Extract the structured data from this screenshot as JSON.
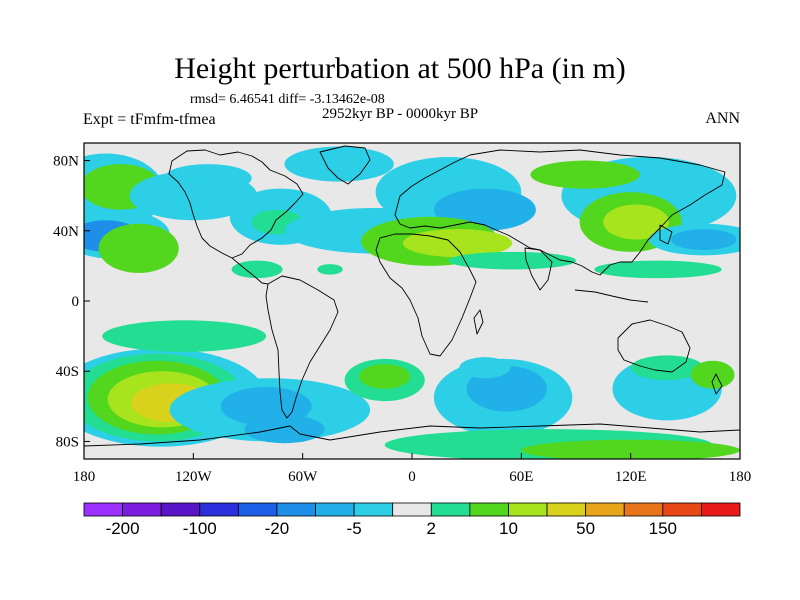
{
  "header": {
    "title": "Height perturbation at 500 hPa (in m)",
    "stats": "rmsd= 6.46541 diff= -3.13462e-08",
    "experiment": "Expt = tFmfm-tfmea",
    "period": "2952kyr BP - 0000kyr BP",
    "season": "ANN"
  },
  "axes": {
    "lat_labels": [
      {
        "label": "80N",
        "value": 80
      },
      {
        "label": "40N",
        "value": 40
      },
      {
        "label": "0",
        "value": 0
      },
      {
        "label": "40S",
        "value": -40
      },
      {
        "label": "80S",
        "value": -80
      }
    ],
    "lon_labels": [
      {
        "label": "180",
        "value": -180
      },
      {
        "label": "120W",
        "value": -120
      },
      {
        "label": "60W",
        "value": -60
      },
      {
        "label": "0",
        "value": 0
      },
      {
        "label": "60E",
        "value": 60
      },
      {
        "label": "120E",
        "value": 120
      },
      {
        "label": "180",
        "value": 180
      }
    ],
    "lat_range": [
      -90,
      90
    ],
    "lon_range": [
      -180,
      180
    ]
  },
  "colorbar": {
    "colors": [
      "#9b30ff",
      "#7b1ee0",
      "#5a14c8",
      "#2b30dc",
      "#1d5ee6",
      "#1e8ee8",
      "#22b0e8",
      "#2ccfe6",
      "#e8e8e8",
      "#23dd93",
      "#52d61e",
      "#a8e41e",
      "#d8d21c",
      "#e8a51a",
      "#e87519",
      "#e84717",
      "#e81919"
    ],
    "labels": [
      {
        "text": "-200",
        "boundary": 1
      },
      {
        "text": "-100",
        "boundary": 3
      },
      {
        "text": "-20",
        "boundary": 5
      },
      {
        "text": "-5",
        "boundary": 7
      },
      {
        "text": "2",
        "boundary": 9
      },
      {
        "text": "10",
        "boundary": 11
      },
      {
        "text": "50",
        "boundary": 13
      },
      {
        "text": "150",
        "boundary": 15
      }
    ]
  },
  "chart_data": {
    "type": "heatmap",
    "title": "Height perturbation at 500 hPa (in m)",
    "background_class": 8,
    "regions": [
      {
        "lon": -168,
        "lat": 62,
        "rlon": 32,
        "rlat": 22,
        "cls": 7
      },
      {
        "lon": -160,
        "lat": 65,
        "rlon": 22,
        "rlat": 13,
        "cls": 10
      },
      {
        "lon": -163,
        "lat": 38,
        "rlon": 30,
        "rlat": 14,
        "cls": 7
      },
      {
        "lon": -168,
        "lat": 37,
        "rlon": 19,
        "rlat": 9,
        "cls": 5
      },
      {
        "lon": -150,
        "lat": 30,
        "rlon": 22,
        "rlat": 14,
        "cls": 10
      },
      {
        "lon": -120,
        "lat": 60,
        "rlon": 35,
        "rlat": 14,
        "cls": 7
      },
      {
        "lon": -112,
        "lat": 70,
        "rlon": 24,
        "rlat": 8,
        "cls": 7
      },
      {
        "lon": -72,
        "lat": 48,
        "rlon": 28,
        "rlat": 16,
        "cls": 7
      },
      {
        "lon": -74,
        "lat": 45,
        "rlon": 14,
        "rlat": 7,
        "cls": 9
      },
      {
        "lon": -85,
        "lat": 18,
        "rlon": 14,
        "rlat": 5,
        "cls": 9
      },
      {
        "lon": -40,
        "lat": 78,
        "rlon": 30,
        "rlat": 10,
        "cls": 7
      },
      {
        "lon": -20,
        "lat": 40,
        "rlon": 50,
        "rlat": 13,
        "cls": 7
      },
      {
        "lon": 20,
        "lat": 62,
        "rlon": 40,
        "rlat": 20,
        "cls": 7
      },
      {
        "lon": 40,
        "lat": 52,
        "rlon": 28,
        "rlat": 12,
        "cls": 6
      },
      {
        "lon": -5,
        "lat": 37,
        "rlon": 10,
        "rlat": 5,
        "cls": 10
      },
      {
        "lon": 10,
        "lat": 34,
        "rlon": 38,
        "rlat": 14,
        "cls": 10
      },
      {
        "lon": 25,
        "lat": 33,
        "rlon": 30,
        "rlat": 8,
        "cls": 11
      },
      {
        "lon": 55,
        "lat": 23,
        "rlon": 35,
        "rlat": 5,
        "cls": 9
      },
      {
        "lon": -45,
        "lat": 18,
        "rlon": 7,
        "rlat": 3,
        "cls": 9
      },
      {
        "lon": 130,
        "lat": 60,
        "rlon": 48,
        "rlat": 22,
        "cls": 7
      },
      {
        "lon": 95,
        "lat": 72,
        "rlon": 30,
        "rlat": 8,
        "cls": 10
      },
      {
        "lon": 120,
        "lat": 45,
        "rlon": 28,
        "rlat": 17,
        "cls": 10
      },
      {
        "lon": 123,
        "lat": 45,
        "rlon": 18,
        "rlat": 10,
        "cls": 11
      },
      {
        "lon": 160,
        "lat": 35,
        "rlon": 30,
        "rlat": 9,
        "cls": 7
      },
      {
        "lon": 160,
        "lat": 35,
        "rlon": 18,
        "rlat": 6,
        "cls": 6
      },
      {
        "lon": 135,
        "lat": 18,
        "rlon": 35,
        "rlat": 5,
        "cls": 9
      },
      {
        "lon": -138,
        "lat": -55,
        "rlon": 58,
        "rlat": 28,
        "cls": 7
      },
      {
        "lon": -140,
        "lat": -55,
        "rlon": 48,
        "rlat": 25,
        "cls": 9
      },
      {
        "lon": -140,
        "lat": -55,
        "rlon": 38,
        "rlat": 21,
        "cls": 10
      },
      {
        "lon": -137,
        "lat": -56,
        "rlon": 30,
        "rlat": 16,
        "cls": 11
      },
      {
        "lon": -132,
        "lat": -58,
        "rlon": 22,
        "rlat": 11,
        "cls": 12
      },
      {
        "lon": -125,
        "lat": -20,
        "rlon": 45,
        "rlat": 9,
        "cls": 9
      },
      {
        "lon": -78,
        "lat": -62,
        "rlon": 55,
        "rlat": 18,
        "cls": 7
      },
      {
        "lon": -80,
        "lat": -60,
        "rlon": 25,
        "rlat": 11,
        "cls": 6
      },
      {
        "lon": -70,
        "lat": -73,
        "rlon": 22,
        "rlat": 8,
        "cls": 6
      },
      {
        "lon": -15,
        "lat": -45,
        "rlon": 22,
        "rlat": 12,
        "cls": 9
      },
      {
        "lon": -15,
        "lat": -43,
        "rlon": 14,
        "rlat": 7,
        "cls": 10
      },
      {
        "lon": 50,
        "lat": -55,
        "rlon": 38,
        "rlat": 22,
        "cls": 7
      },
      {
        "lon": 52,
        "lat": -50,
        "rlon": 22,
        "rlat": 13,
        "cls": 6
      },
      {
        "lon": 40,
        "lat": -38,
        "rlon": 14,
        "rlat": 6,
        "cls": 7
      },
      {
        "lon": 75,
        "lat": -82,
        "rlon": 90,
        "rlat": 9,
        "cls": 9
      },
      {
        "lon": 120,
        "lat": -85,
        "rlon": 60,
        "rlat": 6,
        "cls": 10
      },
      {
        "lon": 140,
        "lat": -50,
        "rlon": 30,
        "rlat": 18,
        "cls": 7
      },
      {
        "lon": 140,
        "lat": -38,
        "rlon": 20,
        "rlat": 7,
        "cls": 9
      },
      {
        "lon": 165,
        "lat": -42,
        "rlon": 12,
        "rlat": 8,
        "cls": 10
      }
    ]
  }
}
